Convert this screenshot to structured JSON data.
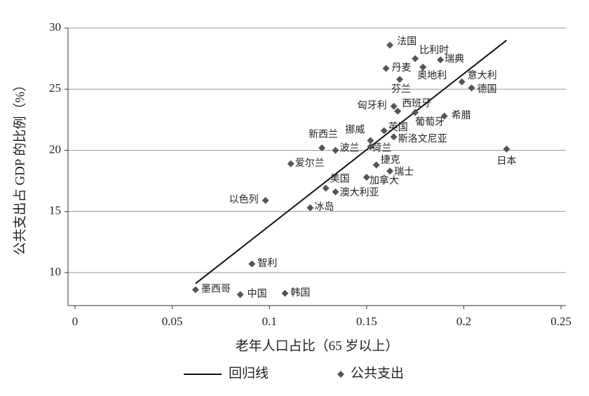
{
  "chart_data": {
    "type": "scatter",
    "xlabel": "老年人口占比（65 岁以上）",
    "ylabel": "公共支出占 GDP 的比例（%）",
    "xlim": [
      -0.0036,
      0.2525
    ],
    "ylim": [
      7.3,
      30
    ],
    "xticks": [
      0,
      0.05,
      0.1,
      0.15,
      0.2,
      0.25
    ],
    "yticks": [
      10,
      15,
      20,
      25,
      30
    ],
    "grid": true,
    "series": [
      {
        "name": "回归线",
        "type": "line",
        "color": "#111111",
        "x": [
          0.062,
          0.222
        ],
        "values": [
          9.1,
          29.0
        ]
      },
      {
        "name": "公共支出",
        "type": "scatter",
        "color": "#555555",
        "labels": [
          "法国",
          "比利时",
          "瑞典",
          "丹麦",
          "奥地利",
          "意大利",
          "德国",
          "芬兰",
          "匈牙利",
          "西班牙",
          "葡萄牙",
          "希腊",
          "英国",
          "斯洛文尼亚",
          "挪威",
          "新西兰",
          "波兰",
          "荷兰",
          "日本",
          "爱尔兰",
          "捷克",
          "瑞士",
          "加拿大",
          "美国",
          "澳大利亚",
          "以色列",
          "冰岛",
          "智利",
          "墨西哥",
          "中国",
          "韩国"
        ],
        "x": [
          0.162,
          0.175,
          0.188,
          0.16,
          0.179,
          0.199,
          0.204,
          0.167,
          0.164,
          0.166,
          0.175,
          0.19,
          0.159,
          0.164,
          0.152,
          0.127,
          0.134,
          0.152,
          0.222,
          0.111,
          0.155,
          0.162,
          0.15,
          0.129,
          0.134,
          0.098,
          0.121,
          0.091,
          0.062,
          0.085,
          0.108
        ],
        "values": [
          28.6,
          27.5,
          27.4,
          26.7,
          26.8,
          25.6,
          25.1,
          25.8,
          23.6,
          23.2,
          23.1,
          22.8,
          21.6,
          21.1,
          20.8,
          20.2,
          20.0,
          20.3,
          20.1,
          18.9,
          18.8,
          18.3,
          17.8,
          16.9,
          16.6,
          15.9,
          15.3,
          10.7,
          8.6,
          8.2,
          8.3
        ]
      }
    ]
  }
}
